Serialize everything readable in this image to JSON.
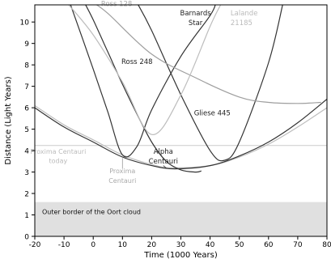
{
  "chart_data": {
    "type": "line",
    "xlabel": "Time (1000 Years)",
    "ylabel": "Distance (Light Years)",
    "xlim": [
      -20,
      80
    ],
    "ylim": [
      0,
      10.8
    ],
    "xticks": [
      -20,
      -10,
      0,
      10,
      20,
      30,
      40,
      50,
      60,
      70,
      80
    ],
    "yticks": [
      0,
      1,
      2,
      3,
      4,
      5,
      6,
      7,
      8,
      9,
      10
    ],
    "grid": false,
    "legend": "none",
    "region": {
      "label": "Outer border of the Oort cloud",
      "from": 0,
      "to": 1.6,
      "color": "#e0e0e0"
    },
    "current_marker": {
      "y": 4.24,
      "color": "#cccccc"
    },
    "series": [
      {
        "name": "Proxima Centauri",
        "color": "#bdbdbd",
        "x": [
          -20,
          -10,
          0,
          10,
          20,
          27,
          40,
          50,
          60,
          70,
          80
        ],
        "y": [
          6.1,
          5.2,
          4.5,
          3.8,
          3.35,
          3.2,
          3.3,
          3.7,
          4.3,
          5.1,
          6.0
        ]
      },
      {
        "name": "Alpha Centauri",
        "color": "#333333",
        "x": [
          -20,
          -10,
          0,
          10,
          20,
          28,
          40,
          50,
          60,
          70,
          80
        ],
        "y": [
          6.0,
          5.1,
          4.4,
          3.7,
          3.3,
          3.15,
          3.3,
          3.75,
          4.4,
          5.3,
          6.4
        ]
      },
      {
        "name": "Ross 248",
        "color": "#333333",
        "x": [
          -8,
          0,
          5,
          10,
          15,
          20,
          30,
          40,
          42
        ],
        "y": [
          10.9,
          7.8,
          5.8,
          3.8,
          4.2,
          5.9,
          8.4,
          10.3,
          10.9
        ]
      },
      {
        "name": "Barnards Star",
        "color": "#333333",
        "x": [
          -3,
          0,
          5,
          10,
          15,
          20,
          25,
          30,
          35,
          37
        ],
        "y": [
          10.9,
          10.1,
          8.6,
          7.1,
          5.7,
          4.4,
          3.5,
          3.1,
          3.0,
          3.05
        ]
      },
      {
        "name": "Gliese 445",
        "color": "#333333",
        "x": [
          15,
          20,
          30,
          40,
          45,
          50,
          60,
          65
        ],
        "y": [
          10.9,
          9.6,
          6.6,
          4.0,
          3.55,
          4.4,
          8.1,
          10.9
        ]
      },
      {
        "name": "Ross 128",
        "color": "#9e9e9e",
        "x": [
          0,
          5,
          20,
          35,
          50,
          60,
          70,
          78
        ],
        "y": [
          10.9,
          10.4,
          8.5,
          7.4,
          6.5,
          6.25,
          6.2,
          6.25
        ]
      },
      {
        "name": "Lalande 21185",
        "color": "#bdbdbd",
        "x": [
          -9,
          0,
          10,
          20,
          30,
          40,
          44
        ],
        "y": [
          10.9,
          9.4,
          7.2,
          4.75,
          6.6,
          9.8,
          10.9
        ]
      }
    ],
    "annotations": [
      {
        "text": "Ross 128",
        "x": 8,
        "y": 10.75,
        "color": "#aaaaaa",
        "anchor": "middle",
        "size": 8.5
      },
      {
        "text": "Barnards",
        "x": 35,
        "y": 10.3,
        "color": "#222222",
        "anchor": "middle",
        "size": 8.5
      },
      {
        "text": "Star",
        "x": 35,
        "y": 9.85,
        "color": "#222222",
        "anchor": "middle",
        "size": 8.5
      },
      {
        "text": "Lalande",
        "x": 47,
        "y": 10.3,
        "color": "#bbbbbb",
        "anchor": "start",
        "size": 8.5
      },
      {
        "text": "21185",
        "x": 47,
        "y": 9.85,
        "color": "#bbbbbb",
        "anchor": "start",
        "size": 8.5
      },
      {
        "text": "Ross 248",
        "x": 15,
        "y": 8.05,
        "color": "#222222",
        "anchor": "middle",
        "size": 8.5
      },
      {
        "text": "Gliese 445",
        "x": 34.5,
        "y": 5.65,
        "color": "#222222",
        "anchor": "start",
        "size": 8.5
      },
      {
        "text": "Alpha",
        "x": 24,
        "y": 3.85,
        "color": "#222222",
        "anchor": "middle",
        "size": 8.5
      },
      {
        "text": "Centauri",
        "x": 24,
        "y": 3.4,
        "color": "#222222",
        "anchor": "middle",
        "size": 8.5
      },
      {
        "text": "Proxima Centauri",
        "x": -12,
        "y": 3.85,
        "color": "#bbbbbb",
        "anchor": "middle",
        "size": 8
      },
      {
        "text": "today",
        "x": -12,
        "y": 3.42,
        "color": "#bbbbbb",
        "anchor": "middle",
        "size": 8
      },
      {
        "text": "Proxima",
        "x": 10,
        "y": 2.95,
        "color": "#aaaaaa",
        "anchor": "middle",
        "size": 8
      },
      {
        "text": "Centauri",
        "x": 10,
        "y": 2.5,
        "color": "#aaaaaa",
        "anchor": "middle",
        "size": 8
      }
    ]
  }
}
